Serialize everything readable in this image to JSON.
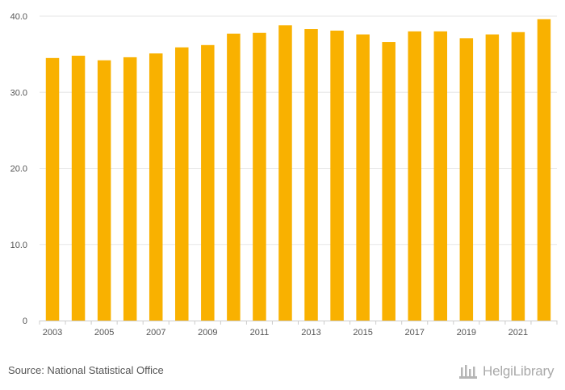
{
  "chart_data": {
    "type": "bar",
    "categories": [
      "2003",
      "2004",
      "2005",
      "2006",
      "2007",
      "2008",
      "2009",
      "2010",
      "2011",
      "2012",
      "2013",
      "2014",
      "2015",
      "2016",
      "2017",
      "2018",
      "2019",
      "2020",
      "2021",
      "2022"
    ],
    "x_tick_labels": [
      "2003",
      "2005",
      "2007",
      "2009",
      "2011",
      "2013",
      "2015",
      "2017",
      "2019",
      "2021"
    ],
    "values": [
      34.5,
      34.8,
      34.2,
      34.6,
      35.1,
      35.9,
      36.2,
      37.7,
      37.8,
      38.8,
      38.3,
      38.1,
      37.6,
      36.6,
      38.0,
      38.0,
      37.1,
      37.6,
      37.9,
      39.6
    ],
    "y_ticks": [
      0,
      10,
      20,
      30,
      40
    ],
    "y_tick_labels": [
      "0",
      "10.0",
      "20.0",
      "30.0",
      "40.0"
    ],
    "ylim": [
      0,
      40
    ],
    "title": "",
    "xlabel": "",
    "ylabel": "",
    "bar_color": "#f9b100",
    "grid": true
  },
  "footer": {
    "source": "Source: National Statistical Office",
    "logo_text": "HelgiLibrary"
  },
  "colors": {
    "grid": "#e6e6e6",
    "axis": "#cccccc",
    "text": "#555555",
    "logo": "#a9a9a9"
  }
}
